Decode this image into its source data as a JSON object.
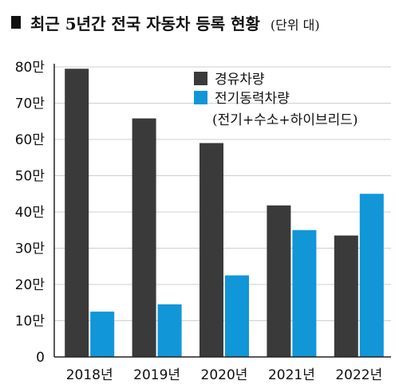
{
  "chart_data": {
    "type": "bar",
    "title": "최근 5년간 전국 자동차 등록 현황",
    "unit_note": "(단위 대)",
    "categories": [
      "2018년",
      "2019년",
      "2020년",
      "2021년",
      "2022년"
    ],
    "series": [
      {
        "name": "경유차량",
        "color": "#3a3a3a",
        "values": [
          79.5,
          65.8,
          59.0,
          41.8,
          33.5
        ]
      },
      {
        "name": "전기동력차량",
        "name_line2": "(전기+수소+하이브리드)",
        "color": "#1196d8",
        "values": [
          12.5,
          14.5,
          22.5,
          35.0,
          45.0
        ]
      }
    ],
    "y_ticks": [
      "0",
      "10만",
      "20만",
      "30만",
      "40만",
      "50만",
      "60만",
      "70만",
      "80만"
    ],
    "ylim": [
      0,
      80
    ],
    "grid": true,
    "legend_position": "top-right"
  }
}
